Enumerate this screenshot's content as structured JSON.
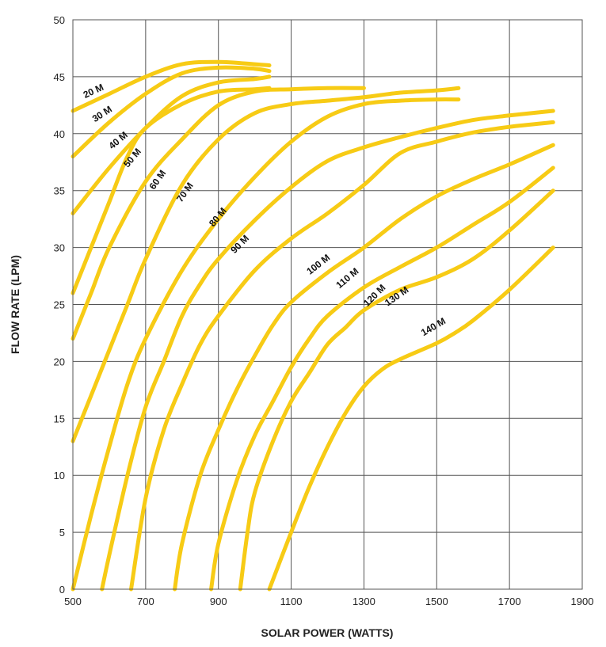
{
  "chart_data": {
    "type": "line",
    "xlabel": "SOLAR POWER (WATTS)",
    "ylabel": "FLOW RATE (LPM)",
    "xlim": [
      500,
      1900
    ],
    "ylim": [
      0,
      50
    ],
    "x_ticks": [
      500,
      700,
      900,
      1100,
      1300,
      1500,
      1700,
      1900
    ],
    "y_ticks": [
      0,
      5,
      10,
      15,
      20,
      25,
      30,
      35,
      40,
      45,
      50
    ],
    "grid": true,
    "line_color": "#F7CB15",
    "series": [
      {
        "name": "20 M",
        "points": [
          [
            500,
            42
          ],
          [
            600,
            43.5
          ],
          [
            700,
            45
          ],
          [
            800,
            46.1
          ],
          [
            900,
            46.3
          ],
          [
            1000,
            46.1
          ],
          [
            1040,
            46
          ]
        ]
      },
      {
        "name": "30 M",
        "points": [
          [
            500,
            38
          ],
          [
            600,
            41
          ],
          [
            700,
            43.5
          ],
          [
            800,
            45.3
          ],
          [
            900,
            45.8
          ],
          [
            1000,
            45.7
          ],
          [
            1040,
            45.5
          ]
        ]
      },
      {
        "name": "40 M",
        "points": [
          [
            500,
            33
          ],
          [
            600,
            37
          ],
          [
            700,
            40.5
          ],
          [
            800,
            43.3
          ],
          [
            900,
            44.5
          ],
          [
            1000,
            44.8
          ],
          [
            1040,
            45
          ]
        ]
      },
      {
        "name": "50 M",
        "points": [
          [
            500,
            26
          ],
          [
            550,
            30
          ],
          [
            600,
            34
          ],
          [
            650,
            38
          ],
          [
            700,
            40.5
          ],
          [
            800,
            42.6
          ],
          [
            900,
            43.7
          ],
          [
            1000,
            43.9
          ],
          [
            1040,
            44
          ]
        ]
      },
      {
        "name": "60 M",
        "points": [
          [
            500,
            22
          ],
          [
            550,
            26
          ],
          [
            600,
            30
          ],
          [
            700,
            35.8
          ],
          [
            800,
            39.5
          ],
          [
            900,
            42.5
          ],
          [
            1000,
            43.7
          ],
          [
            1100,
            43.9
          ],
          [
            1200,
            44
          ],
          [
            1300,
            44
          ]
        ]
      },
      {
        "name": "70 M",
        "points": [
          [
            500,
            13
          ],
          [
            550,
            17
          ],
          [
            600,
            21
          ],
          [
            650,
            25
          ],
          [
            700,
            29
          ],
          [
            800,
            35.5
          ],
          [
            900,
            39.5
          ],
          [
            1000,
            41.8
          ],
          [
            1100,
            42.6
          ],
          [
            1200,
            42.9
          ],
          [
            1300,
            43.2
          ],
          [
            1400,
            43.6
          ],
          [
            1500,
            43.8
          ],
          [
            1560,
            44
          ]
        ]
      },
      {
        "name": "80 M",
        "points": [
          [
            500,
            0
          ],
          [
            550,
            6.5
          ],
          [
            600,
            12.5
          ],
          [
            650,
            18
          ],
          [
            700,
            22
          ],
          [
            800,
            28
          ],
          [
            900,
            32.5
          ],
          [
            1000,
            36.2
          ],
          [
            1100,
            39.3
          ],
          [
            1200,
            41.5
          ],
          [
            1300,
            42.6
          ],
          [
            1400,
            42.9
          ],
          [
            1500,
            43
          ],
          [
            1560,
            43
          ]
        ]
      },
      {
        "name": "90 M",
        "points": [
          [
            580,
            0
          ],
          [
            600,
            3
          ],
          [
            650,
            10
          ],
          [
            700,
            16
          ],
          [
            750,
            20
          ],
          [
            800,
            24
          ],
          [
            850,
            26.8
          ],
          [
            900,
            29
          ],
          [
            1000,
            32.4
          ],
          [
            1100,
            35.3
          ],
          [
            1200,
            37.6
          ],
          [
            1300,
            38.8
          ],
          [
            1400,
            39.7
          ],
          [
            1500,
            40.5
          ],
          [
            1600,
            41.2
          ],
          [
            1700,
            41.6
          ],
          [
            1820,
            42
          ]
        ]
      },
      {
        "name": "100 M",
        "points": [
          [
            660,
            0
          ],
          [
            700,
            8
          ],
          [
            750,
            14
          ],
          [
            800,
            18
          ],
          [
            850,
            21.5
          ],
          [
            900,
            24
          ],
          [
            1000,
            28
          ],
          [
            1100,
            30.8
          ],
          [
            1200,
            33
          ],
          [
            1300,
            35.5
          ],
          [
            1400,
            38.3
          ],
          [
            1500,
            39.3
          ],
          [
            1600,
            40.1
          ],
          [
            1700,
            40.6
          ],
          [
            1820,
            41
          ]
        ]
      },
      {
        "name": "110 M",
        "points": [
          [
            780,
            0
          ],
          [
            800,
            4
          ],
          [
            850,
            10
          ],
          [
            900,
            14
          ],
          [
            950,
            17.5
          ],
          [
            1000,
            20.5
          ],
          [
            1050,
            23.2
          ],
          [
            1100,
            25.2
          ],
          [
            1200,
            27.8
          ],
          [
            1300,
            30
          ],
          [
            1400,
            32.5
          ],
          [
            1500,
            34.5
          ],
          [
            1600,
            36
          ],
          [
            1700,
            37.3
          ],
          [
            1820,
            39
          ]
        ]
      },
      {
        "name": "120 M",
        "points": [
          [
            880,
            0
          ],
          [
            900,
            4
          ],
          [
            950,
            9.5
          ],
          [
            1000,
            13.5
          ],
          [
            1050,
            16.5
          ],
          [
            1100,
            19.5
          ],
          [
            1150,
            22
          ],
          [
            1200,
            24
          ],
          [
            1300,
            26.5
          ],
          [
            1400,
            28.3
          ],
          [
            1500,
            30
          ],
          [
            1600,
            32
          ],
          [
            1700,
            34
          ],
          [
            1820,
            37
          ]
        ]
      },
      {
        "name": "130 M",
        "points": [
          [
            960,
            0
          ],
          [
            980,
            5
          ],
          [
            1000,
            8.5
          ],
          [
            1050,
            13
          ],
          [
            1100,
            16.5
          ],
          [
            1150,
            19
          ],
          [
            1200,
            21.5
          ],
          [
            1250,
            23
          ],
          [
            1300,
            24.5
          ],
          [
            1400,
            26.3
          ],
          [
            1500,
            27.4
          ],
          [
            1600,
            29
          ],
          [
            1700,
            31.5
          ],
          [
            1820,
            35
          ]
        ]
      },
      {
        "name": "140 M",
        "points": [
          [
            1040,
            0
          ],
          [
            1100,
            5
          ],
          [
            1150,
            9
          ],
          [
            1200,
            12.5
          ],
          [
            1250,
            15.5
          ],
          [
            1300,
            17.8
          ],
          [
            1350,
            19.3
          ],
          [
            1400,
            20.2
          ],
          [
            1500,
            21.6
          ],
          [
            1550,
            22.5
          ],
          [
            1600,
            23.6
          ],
          [
            1700,
            26.3
          ],
          [
            1820,
            30
          ]
        ]
      }
    ],
    "labels": [
      {
        "text": "20 M",
        "x": 560,
        "y": 43.5,
        "angle": -25
      },
      {
        "text": "30 M",
        "x": 585,
        "y": 41.5,
        "angle": -33
      },
      {
        "text": "40 M",
        "x": 630,
        "y": 39.2,
        "angle": -40
      },
      {
        "text": "50 M",
        "x": 670,
        "y": 37.7,
        "angle": -50
      },
      {
        "text": "60 M",
        "x": 740,
        "y": 35.8,
        "angle": -55
      },
      {
        "text": "70 M",
        "x": 815,
        "y": 34.7,
        "angle": -55
      },
      {
        "text": "80 M",
        "x": 905,
        "y": 32.5,
        "angle": -50
      },
      {
        "text": "90 M",
        "x": 965,
        "y": 30.1,
        "angle": -45
      },
      {
        "text": "100 M",
        "x": 1180,
        "y": 28.3,
        "angle": -38
      },
      {
        "text": "110 M",
        "x": 1260,
        "y": 27.1,
        "angle": -40
      },
      {
        "text": "120 M",
        "x": 1335,
        "y": 25.6,
        "angle": -45
      },
      {
        "text": "130 M",
        "x": 1395,
        "y": 25.5,
        "angle": -35
      },
      {
        "text": "140 M",
        "x": 1495,
        "y": 22.8,
        "angle": -30
      }
    ]
  }
}
